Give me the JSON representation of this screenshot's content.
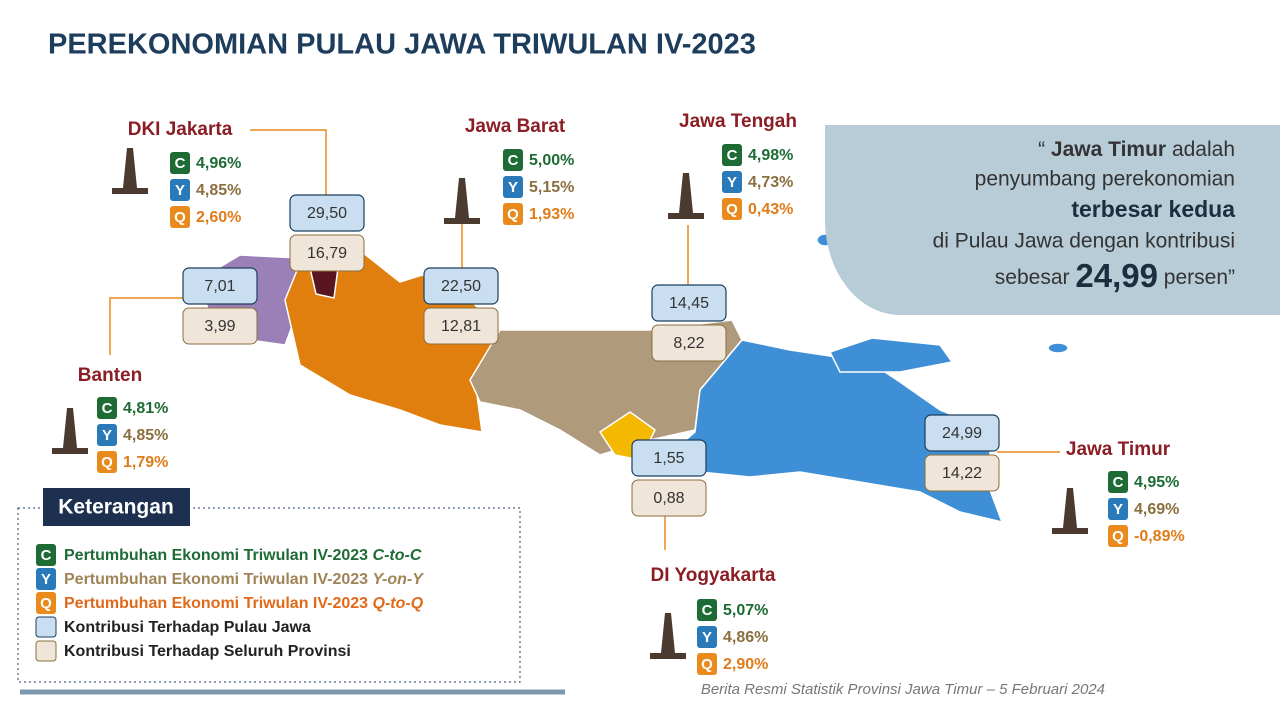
{
  "title": "PEREKONOMIAN PULAU JAWA TRIWULAN IV-2023",
  "provinces": [
    {
      "name": "DKI Jakarta",
      "c": "4,96%",
      "y": "4,85%",
      "q": "2,60%",
      "java": "29,50",
      "all": "16,79"
    },
    {
      "name": "Jawa Barat",
      "c": "5,00%",
      "y": "5,15%",
      "q": "1,93%",
      "java": "22,50",
      "all": "12,81"
    },
    {
      "name": "Jawa Tengah",
      "c": "4,98%",
      "y": "4,73%",
      "q": "0,43%",
      "java": "14,45",
      "all": "8,22"
    },
    {
      "name": "Banten",
      "c": "4,81%",
      "y": "4,85%",
      "q": "1,79%",
      "java": "7,01",
      "all": "3,99"
    },
    {
      "name": "DI Yogyakarta",
      "c": "5,07%",
      "y": "4,86%",
      "q": "2,90%",
      "java": "1,55",
      "all": "0,88"
    },
    {
      "name": "Jawa Timur",
      "c": "4,95%",
      "y": "4,69%",
      "q": "-0,89%",
      "java": "24,99",
      "all": "14,22"
    }
  ],
  "badges": {
    "c": "C",
    "y": "Y",
    "q": "Q"
  },
  "quote": {
    "open": "“",
    "name": "Jawa Timur",
    "line1": "adalah",
    "line2": "penyumbang perekonomian",
    "line3": "terbesar kedua",
    "line4": "di Pulau Jawa dengan kontribusi",
    "pre": "sebesar",
    "number": "24,99",
    "post": "persen”"
  },
  "legend": {
    "title": "Keterangan",
    "items": [
      {
        "badge": "C",
        "text": "Pertumbuhan Ekonomi Triwulan IV-2023",
        "suffix": "C-to-C"
      },
      {
        "badge": "Y",
        "text": "Pertumbuhan Ekonomi Triwulan IV-2023",
        "suffix": "Y-on-Y"
      },
      {
        "badge": "Q",
        "text": "Pertumbuhan Ekonomi Triwulan IV-2023",
        "suffix": "Q-to-Q"
      },
      {
        "text": "Kontribusi Terhadap Pulau Jawa"
      },
      {
        "text": "Kontribusi Terhadap Seluruh Provinsi"
      }
    ]
  },
  "footer": "Berita Resmi Statistik Provinsi Jawa Timur – 5 Februari 2024"
}
